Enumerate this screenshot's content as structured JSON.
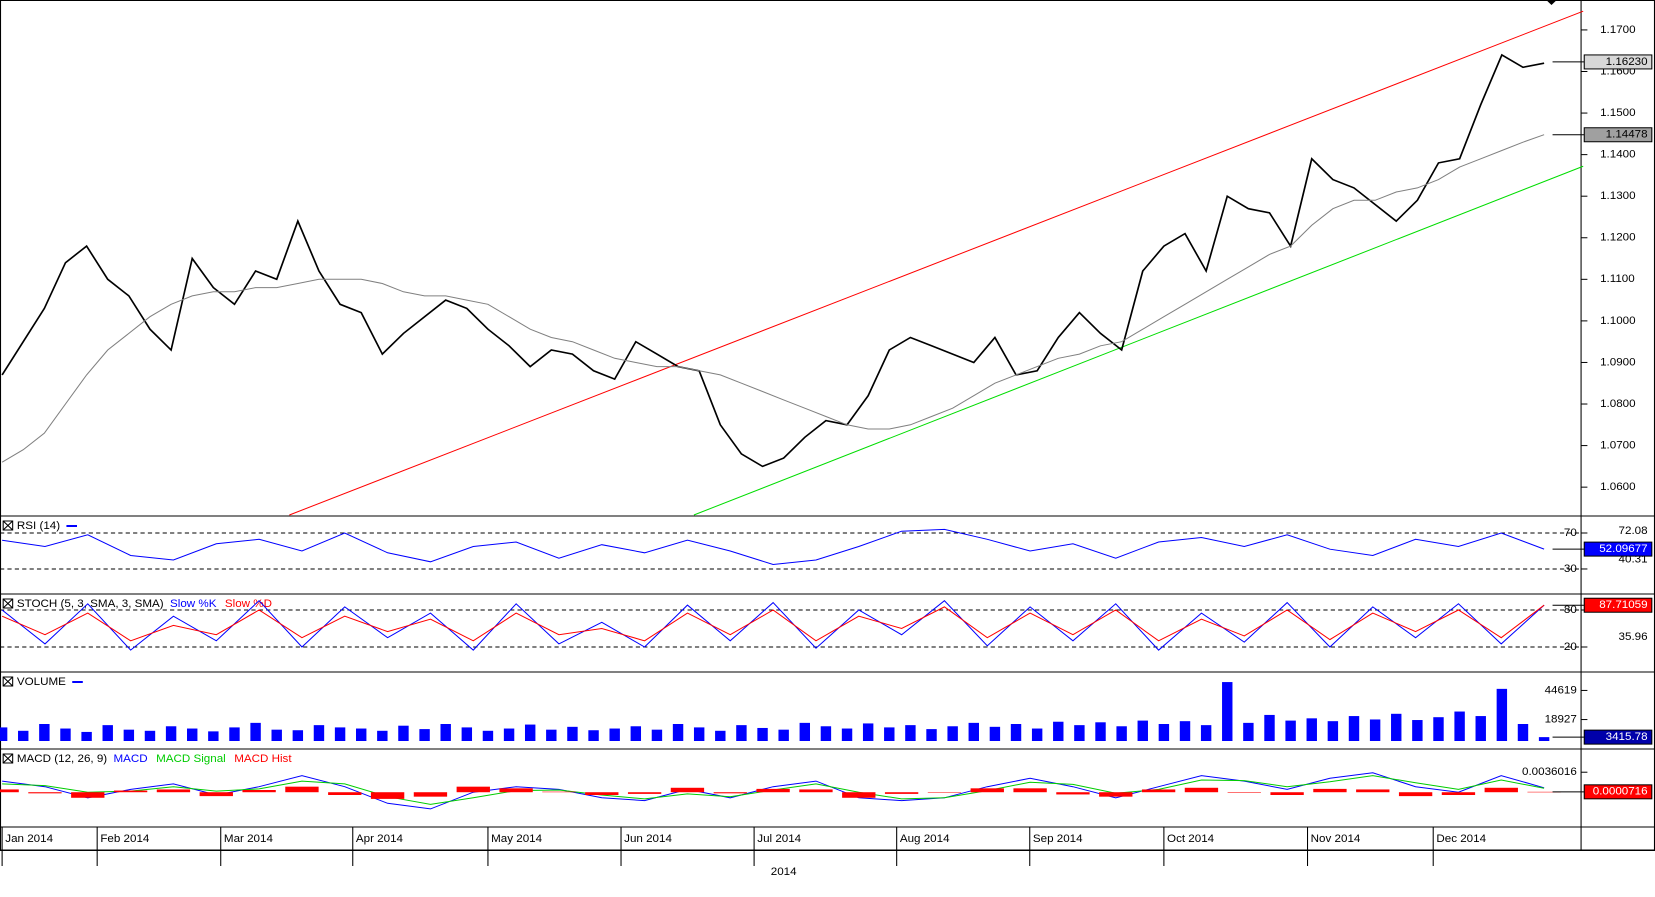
{
  "chart_data": [
    {
      "type": "line",
      "ylim": [
        1.0533,
        1.1772
      ],
      "yticks": [
        {
          "value": 1.06,
          "label": "1.0600"
        },
        {
          "value": 1.07,
          "label": "1.0700"
        },
        {
          "value": 1.08,
          "label": "1.0800"
        },
        {
          "value": 1.09,
          "label": "1.0900"
        },
        {
          "value": 1.1,
          "label": "1.1000"
        },
        {
          "value": 1.11,
          "label": "1.1100"
        },
        {
          "value": 1.12,
          "label": "1.1200"
        },
        {
          "value": 1.13,
          "label": "1.1300"
        },
        {
          "value": 1.14,
          "label": "1.1400"
        },
        {
          "value": 1.15,
          "label": "1.1500"
        },
        {
          "value": 1.16,
          "label": "1.1600"
        },
        {
          "value": 1.17,
          "label": "1.1700"
        }
      ],
      "xticks": [
        {
          "value": 0,
          "label": "Jan 2014"
        },
        {
          "value": 4.5,
          "label": "Feb 2014"
        },
        {
          "value": 10.35,
          "label": "Mar 2014"
        },
        {
          "value": 16.6,
          "label": "Apr 2014"
        },
        {
          "value": 23,
          "label": "May 2014"
        },
        {
          "value": 29.3,
          "label": "Jun 2014"
        },
        {
          "value": 35.6,
          "label": "Jul 2014"
        },
        {
          "value": 42.35,
          "label": "Aug 2014"
        },
        {
          "value": 48.65,
          "label": "Sep 2014"
        },
        {
          "value": 55,
          "label": "Oct 2014"
        },
        {
          "value": 61.8,
          "label": "Nov 2014"
        },
        {
          "value": 67.75,
          "label": "Dec 2014"
        }
      ],
      "xlabel": "2014",
      "series": [
        {
          "color": "#000000",
          "values": [
            1.087,
            1.095,
            1.103,
            1.114,
            1.118,
            1.11,
            1.106,
            1.098,
            1.093,
            1.115,
            1.108,
            1.104,
            1.112,
            1.11,
            1.124,
            1.112,
            1.104,
            1.102,
            1.092,
            1.097,
            1.101,
            1.105,
            1.103,
            1.098,
            1.094,
            1.089,
            1.093,
            1.092,
            1.088,
            1.086,
            1.095,
            1.092,
            1.089,
            1.088,
            1.075,
            1.068,
            1.065,
            1.067,
            1.072,
            1.076,
            1.075,
            1.082,
            1.093,
            1.096,
            1.094,
            1.092,
            1.09,
            1.096,
            1.087,
            1.088,
            1.096,
            1.102,
            1.097,
            1.093,
            1.112,
            1.118,
            1.121,
            1.112,
            1.13,
            1.127,
            1.126,
            1.118,
            1.139,
            1.134,
            1.132,
            1.128,
            1.124,
            1.129,
            1.138,
            1.139,
            1.152,
            1.164,
            1.161,
            1.162
          ]
        },
        {
          "color": "#808080",
          "values": [
            1.066,
            1.069,
            1.073,
            1.08,
            1.087,
            1.093,
            1.097,
            1.101,
            1.104,
            1.106,
            1.107,
            1.107,
            1.108,
            1.108,
            1.109,
            1.11,
            1.11,
            1.11,
            1.109,
            1.107,
            1.106,
            1.106,
            1.105,
            1.104,
            1.101,
            1.098,
            1.096,
            1.095,
            1.093,
            1.091,
            1.09,
            1.089,
            1.089,
            1.088,
            1.087,
            1.085,
            1.083,
            1.081,
            1.079,
            1.077,
            1.075,
            1.074,
            1.074,
            1.075,
            1.077,
            1.079,
            1.082,
            1.085,
            1.087,
            1.089,
            1.091,
            1.092,
            1.094,
            1.095,
            1.098,
            1.101,
            1.104,
            1.107,
            1.11,
            1.113,
            1.116,
            1.118,
            1.123,
            1.127,
            1.129,
            1.129,
            1.131,
            1.132,
            1.134,
            1.137,
            1.139,
            1.141,
            1.143,
            1.1448
          ]
        }
      ],
      "trend_lines": [
        {
          "color": "#ff0000",
          "x": [
            13.6,
            74.85
          ],
          "y": [
            1.0533,
            1.1745
          ]
        },
        {
          "color": "#00dd00",
          "x": [
            32.75,
            74.85
          ],
          "y": [
            1.0533,
            1.1372
          ]
        }
      ],
      "tags": [
        {
          "value": 1.1623,
          "label": "1.16230",
          "color": "#d8d8d8"
        },
        {
          "value": 1.14478,
          "label": "1.14478",
          "color": "#a0a0a0"
        }
      ]
    },
    {
      "type": "line",
      "title": "RSI (14)",
      "ylim": [
        4.4,
        87.8
      ],
      "yticks": [
        70,
        30
      ],
      "grid": "dashed",
      "series": [
        {
          "color": "#0000ff",
          "values": [
            62,
            55,
            68,
            45,
            40,
            58,
            63,
            50,
            70,
            48,
            38,
            55,
            60,
            42,
            57,
            48,
            62,
            50,
            35,
            40,
            55,
            72,
            74,
            63,
            50,
            58,
            42,
            60,
            65,
            55,
            68,
            52,
            45,
            63,
            55,
            70,
            52.09677
          ]
        }
      ],
      "tags": [
        {
          "value": 72.08
        },
        {
          "value": 40.31
        },
        {
          "value": 52.09677,
          "color": "#0000ff"
        }
      ]
    },
    {
      "type": "line",
      "title": "STOCH (5, 3, SMA, 3, SMA)",
      "ylim": [
        -17.3,
        104.3
      ],
      "yticks": [
        80,
        20
      ],
      "grid": "dashed",
      "series": [
        {
          "name": "Slow %K",
          "color": "#0000ff",
          "values": [
            80,
            25,
            90,
            15,
            70,
            30,
            95,
            20,
            85,
            35,
            75,
            15,
            90,
            25,
            60,
            20,
            88,
            30,
            92,
            18,
            80,
            40,
            95,
            22,
            85,
            30,
            90,
            15,
            75,
            28,
            92,
            20,
            85,
            35,
            90,
            25,
            88
          ]
        },
        {
          "name": "Slow %D",
          "color": "#ff0000",
          "values": [
            70,
            40,
            75,
            30,
            55,
            40,
            80,
            35,
            70,
            45,
            65,
            30,
            75,
            40,
            50,
            30,
            75,
            40,
            80,
            30,
            70,
            50,
            85,
            35,
            75,
            40,
            80,
            30,
            65,
            38,
            80,
            32,
            75,
            45,
            80,
            35,
            87.71059
          ]
        }
      ],
      "tags": [
        {
          "value": 87.71059,
          "color": "#ff0000"
        },
        {
          "value": 35.96
        }
      ]
    },
    {
      "type": "bar",
      "title": "VOLUME",
      "ylim": [
        0,
        60000
      ],
      "yticks": [
        44619,
        18927
      ],
      "series": [
        {
          "color": "#0000ff",
          "values": [
            12000,
            9000,
            15000,
            11000,
            8000,
            14000,
            10000,
            9000,
            13000,
            11000,
            8500,
            12000,
            16000,
            10000,
            9500,
            14000,
            12000,
            11000,
            9000,
            13500,
            10500,
            15000,
            12000,
            9000,
            11000,
            14500,
            10000,
            12500,
            9500,
            11000,
            13000,
            10000,
            15000,
            12000,
            9000,
            14000,
            11500,
            10000,
            16000,
            13000,
            11000,
            15500,
            12000,
            14000,
            10500,
            13000,
            16000,
            12500,
            15000,
            11000,
            17000,
            14000,
            16500,
            13000,
            18000,
            15000,
            17500,
            14000,
            52000,
            16000,
            23000,
            18000,
            20000,
            17500,
            22000,
            19000,
            24000,
            18500,
            21000,
            26000,
            22000,
            46000,
            15000,
            3415.78
          ]
        }
      ],
      "tags": [
        {
          "value": 3415.78,
          "color": "#0000aa"
        }
      ]
    },
    {
      "type": "line",
      "title": "MACD (12, 26, 9)",
      "ylim": [
        -0.0059,
        0.0076
      ],
      "yticks": [
        0.0036016
      ],
      "series": [
        {
          "name": "MACD",
          "color": "#0000ff",
          "values": [
            0.002,
            0.001,
            -0.001,
            0.0005,
            0.0015,
            -0.0005,
            0.001,
            0.003,
            0.001,
            -0.002,
            -0.003,
            0,
            0.001,
            0.0005,
            -0.001,
            -0.0015,
            0.0005,
            -0.001,
            0.001,
            0.002,
            -0.001,
            -0.0015,
            -0.001,
            0.001,
            0.0025,
            0.001,
            -0.001,
            0.001,
            0.003,
            0.002,
            0.0005,
            0.0025,
            0.0035,
            0.001,
            0,
            0.003,
            0.0008
          ]
        },
        {
          "name": "MACD Signal",
          "color": "#00cc00",
          "values": [
            0.0015,
            0.0012,
            0,
            0.0002,
            0.001,
            0.0002,
            0.0006,
            0.002,
            0.0015,
            -0.0008,
            -0.0022,
            -0.001,
            0.0003,
            0.0004,
            -0.0005,
            -0.0012,
            -0.0003,
            -0.0008,
            0.0004,
            0.0015,
            0,
            -0.0012,
            -0.001,
            0.0003,
            0.0018,
            0.0014,
            -0.0002,
            0.0005,
            0.0022,
            0.0021,
            0.001,
            0.0019,
            0.003,
            0.0017,
            0.0005,
            0.0022,
            0.0007
          ]
        },
        {
          "name": "MACD Hist",
          "color": "#ff0000",
          "type": "bar",
          "values": [
            0.0005,
            -0.0002,
            -0.001,
            0.0003,
            0.0005,
            -0.0007,
            0.0004,
            0.001,
            -0.0005,
            -0.0012,
            -0.0008,
            0.001,
            0.0007,
            0.0001,
            -0.0005,
            -0.0003,
            0.0008,
            -0.0002,
            0.0006,
            0.0005,
            -0.001,
            -0.0003,
            0,
            0.0007,
            0.0007,
            -0.0004,
            -0.0008,
            0.0005,
            0.0008,
            -0.0001,
            -0.0005,
            0.0006,
            0.0005,
            -0.0007,
            -0.0005,
            0.0008,
            7.16e-05
          ]
        }
      ],
      "tags": [
        {
          "value": 7.16e-05,
          "color": "#ff0000"
        }
      ]
    }
  ]
}
